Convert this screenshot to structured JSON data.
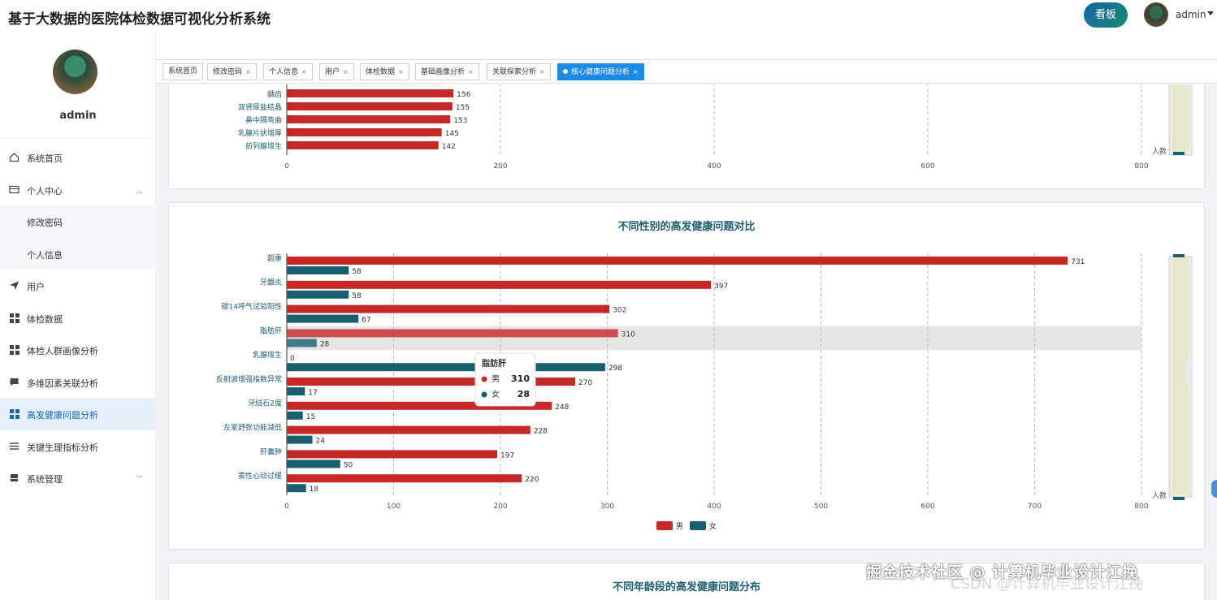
{
  "header": {
    "app_title": "基于大数据的医院体检数据可视化分析系统",
    "dashboard_button": "看板",
    "username": "admin"
  },
  "sidebar": {
    "username": "admin",
    "items": [
      {
        "label": "系统首页",
        "icon": "home-icon"
      },
      {
        "label": "个人中心",
        "icon": "card-icon",
        "expanded": true
      },
      {
        "label": "修改密码",
        "sub": true
      },
      {
        "label": "个人信息",
        "sub": true
      },
      {
        "label": "用户",
        "icon": "send-icon"
      },
      {
        "label": "体检数据",
        "icon": "grid-icon"
      },
      {
        "label": "体检人群画像分析",
        "icon": "grid-icon"
      },
      {
        "label": "多维因素关联分析",
        "icon": "chat-icon"
      },
      {
        "label": "高发健康问题分析",
        "icon": "grid-icon",
        "active": true
      },
      {
        "label": "关键生理指标分析",
        "icon": "list-icon"
      },
      {
        "label": "系统管理",
        "icon": "server-icon",
        "expandable": true
      }
    ]
  },
  "tabs": [
    {
      "label": "系统首页",
      "closable": false
    },
    {
      "label": "修改密码",
      "closable": true
    },
    {
      "label": "个人信息",
      "closable": true
    },
    {
      "label": "用户",
      "closable": true
    },
    {
      "label": "体检数据",
      "closable": true
    },
    {
      "label": "基础画像分析",
      "closable": true
    },
    {
      "label": "关联探索分析",
      "closable": true
    },
    {
      "label": "核心健康问题分析",
      "closable": true,
      "active": true
    }
  ],
  "colors": {
    "male": "#c62828",
    "female": "#1a5f70",
    "accent": "#1e88e5"
  },
  "chart_data": [
    {
      "type": "bar",
      "orientation": "horizontal",
      "title": "",
      "categories": [
        "龋齿",
        "双肾尿盐结晶",
        "鼻中隔弯曲",
        "乳腺片状增厚",
        "前列腺增生"
      ],
      "values": [
        156,
        155,
        153,
        145,
        142
      ],
      "xlim": [
        0,
        800
      ],
      "xticks": [
        "0",
        "200",
        "400",
        "600",
        "800"
      ],
      "slider_label": "人数",
      "grid": true
    },
    {
      "type": "bar",
      "orientation": "horizontal",
      "title": "不同性别的高发健康问题对比",
      "categories": [
        "超重",
        "牙龈炎",
        "碳14呼气试验阳性",
        "脂肪肝",
        "乳腺增生",
        "反射波增强指数异常",
        "牙结石2度",
        "左室舒张功能减低",
        "肝囊肿",
        "窦性心动过缓"
      ],
      "series": [
        {
          "name": "男",
          "values": [
            731,
            397,
            302,
            310,
            0,
            270,
            248,
            228,
            197,
            220
          ]
        },
        {
          "name": "女",
          "values": [
            58,
            58,
            67,
            28,
            298,
            17,
            15,
            24,
            50,
            18
          ]
        }
      ],
      "xlim": [
        0,
        800
      ],
      "xticks": [
        "0",
        "100",
        "200",
        "300",
        "400",
        "500",
        "600",
        "700",
        "800"
      ],
      "legend": "bottom-center",
      "slider_label": "人数",
      "highlighted_category": "脂肪肝",
      "tooltip": {
        "title": "脂肪肝",
        "rows": [
          {
            "name": "男",
            "value": "310"
          },
          {
            "name": "女",
            "value": "28"
          }
        ]
      },
      "grid": true
    },
    {
      "type": "bar",
      "title": "不同年龄段的高发健康问题分布"
    }
  ],
  "watermark": "掘金技术社区 @ 计算机毕业设计江挽",
  "watermark2": "CSDN @计算机毕业设计江挽"
}
